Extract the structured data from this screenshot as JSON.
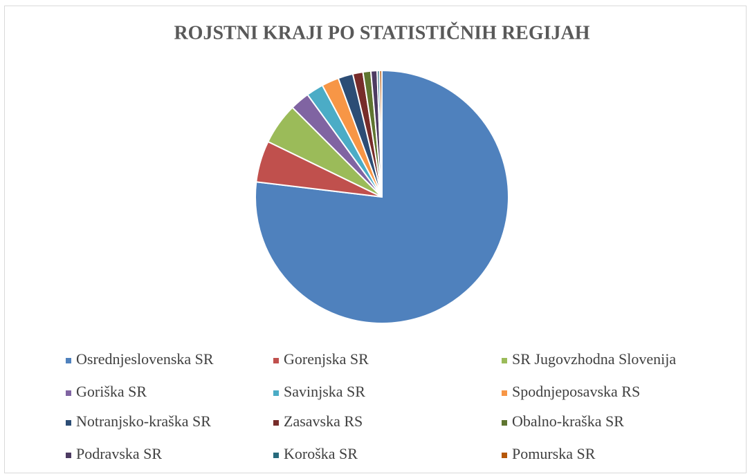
{
  "chart_data": {
    "type": "pie",
    "title": "ROJSTNI KRAJI PO STATISTIČNIH REGIJAH",
    "categories": [
      "Osrednjeslovenska SR",
      "Gorenjska SR",
      "SR Jugovzhodna Slovenija",
      "Goriška SR",
      "Savinjska SR",
      "Spodnjeposavska RS",
      "Notranjsko-kraška SR",
      "Zasavska RS",
      "Obalno-kraška SR",
      "Podravska SR",
      "Koroška SR",
      "Pomurska SR"
    ],
    "values": [
      76.9,
      5.3,
      5.3,
      2.5,
      2.2,
      2.2,
      1.9,
      1.3,
      1.0,
      0.8,
      0.3,
      0.3
    ],
    "colors": [
      "#4f81bd",
      "#c0504d",
      "#9bbb59",
      "#8064a2",
      "#4bacc6",
      "#f79646",
      "#2c4d75",
      "#772c2a",
      "#5f7530",
      "#4d3b62",
      "#276a7c",
      "#b65708"
    ],
    "legend": "bottom"
  }
}
